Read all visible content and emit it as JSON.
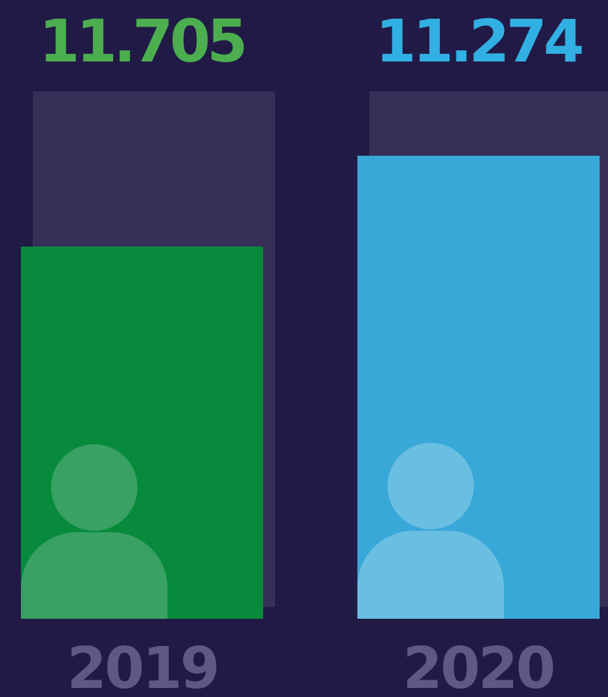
{
  "items": [
    {
      "value": "11.705",
      "year": "2019"
    },
    {
      "value": "11.274",
      "year": "2020"
    }
  ]
}
